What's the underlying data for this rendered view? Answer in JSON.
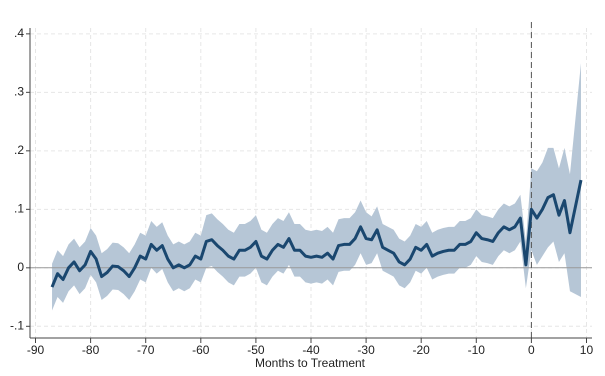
{
  "chart_data": {
    "type": "line",
    "x_label": "Months to Treatment",
    "x": [
      -87,
      -86,
      -85,
      -84,
      -83,
      -82,
      -81,
      -80,
      -79,
      -78,
      -77,
      -76,
      -75,
      -74,
      -73,
      -72,
      -71,
      -70,
      -69,
      -68,
      -67,
      -66,
      -65,
      -64,
      -63,
      -62,
      -61,
      -60,
      -59,
      -58,
      -57,
      -56,
      -55,
      -54,
      -53,
      -52,
      -51,
      -50,
      -49,
      -48,
      -47,
      -46,
      -45,
      -44,
      -43,
      -42,
      -41,
      -40,
      -39,
      -38,
      -37,
      -36,
      -35,
      -34,
      -33,
      -32,
      -31,
      -30,
      -29,
      -28,
      -27,
      -26,
      -25,
      -24,
      -23,
      -22,
      -21,
      -20,
      -19,
      -18,
      -17,
      -16,
      -15,
      -14,
      -13,
      -12,
      -11,
      -10,
      -9,
      -8,
      -7,
      -6,
      -5,
      -4,
      -3,
      -2,
      -1,
      0,
      1,
      2,
      3,
      4,
      5,
      6,
      7,
      8,
      9
    ],
    "values": [
      -0.033,
      -0.01,
      -0.02,
      0,
      0.01,
      -0.005,
      0.005,
      0.028,
      0.015,
      -0.015,
      -0.008,
      0.003,
      0.002,
      -0.005,
      -0.015,
      0,
      0.02,
      0.015,
      0.04,
      0.03,
      0.038,
      0.015,
      0,
      0.005,
      0,
      0.005,
      0.02,
      0.015,
      0.045,
      0.048,
      0.038,
      0.03,
      0.02,
      0.015,
      0.03,
      0.03,
      0.035,
      0.045,
      0.02,
      0.015,
      0.03,
      0.04,
      0.035,
      0.05,
      0.03,
      0.03,
      0.02,
      0.018,
      0.02,
      0.018,
      0.025,
      0.015,
      0.038,
      0.04,
      0.04,
      0.05,
      0.07,
      0.05,
      0.048,
      0.065,
      0.035,
      0.03,
      0.025,
      0.01,
      0.005,
      0.015,
      0.035,
      0.03,
      0.04,
      0.02,
      0.025,
      0.028,
      0.03,
      0.03,
      0.04,
      0.04,
      0.045,
      0.06,
      0.05,
      0.048,
      0.045,
      0.06,
      0.07,
      0.065,
      0.07,
      0.085,
      0.005,
      0.1,
      0.085,
      0.1,
      0.12,
      0.125,
      0.09,
      0.115,
      0.06,
      0.105,
      0.15
    ],
    "errors": [
      0.04,
      0.04,
      0.04,
      0.04,
      0.04,
      0.04,
      0.04,
      0.04,
      0.04,
      0.04,
      0.04,
      0.04,
      0.04,
      0.04,
      0.04,
      0.04,
      0.04,
      0.04,
      0.04,
      0.04,
      0.04,
      0.04,
      0.04,
      0.04,
      0.04,
      0.04,
      0.04,
      0.04,
      0.045,
      0.045,
      0.045,
      0.045,
      0.045,
      0.045,
      0.045,
      0.045,
      0.045,
      0.045,
      0.045,
      0.045,
      0.045,
      0.045,
      0.045,
      0.045,
      0.045,
      0.045,
      0.045,
      0.045,
      0.045,
      0.045,
      0.045,
      0.045,
      0.045,
      0.045,
      0.045,
      0.045,
      0.045,
      0.045,
      0.04,
      0.04,
      0.04,
      0.04,
      0.04,
      0.04,
      0.04,
      0.04,
      0.04,
      0.04,
      0.04,
      0.04,
      0.04,
      0.04,
      0.04,
      0.04,
      0.04,
      0.04,
      0.04,
      0.04,
      0.04,
      0.04,
      0.04,
      0.04,
      0.04,
      0.04,
      0.04,
      0.04,
      0.04,
      0.07,
      0.08,
      0.08,
      0.085,
      0.08,
      0.08,
      0.09,
      0.1,
      0.15,
      0.2
    ],
    "color": "#1a476f",
    "band_color": "#b6c6d6",
    "xlim": [
      -91,
      11
    ],
    "xticks": [
      -90,
      -80,
      -70,
      -60,
      -50,
      -40,
      -30,
      -20,
      -10,
      0,
      10
    ],
    "ylim": [
      -0.12,
      0.41
    ],
    "yticks": [
      {
        "value": 0.4,
        "label": ".4"
      },
      {
        "value": 0.3,
        "label": ".3"
      },
      {
        "value": 0.2,
        "label": ".2"
      },
      {
        "value": 0.1,
        "label": ".1"
      },
      0,
      {
        "value": -0.1,
        "label": "-.1"
      }
    ],
    "grid": true,
    "hline": 0,
    "vline": 0
  }
}
